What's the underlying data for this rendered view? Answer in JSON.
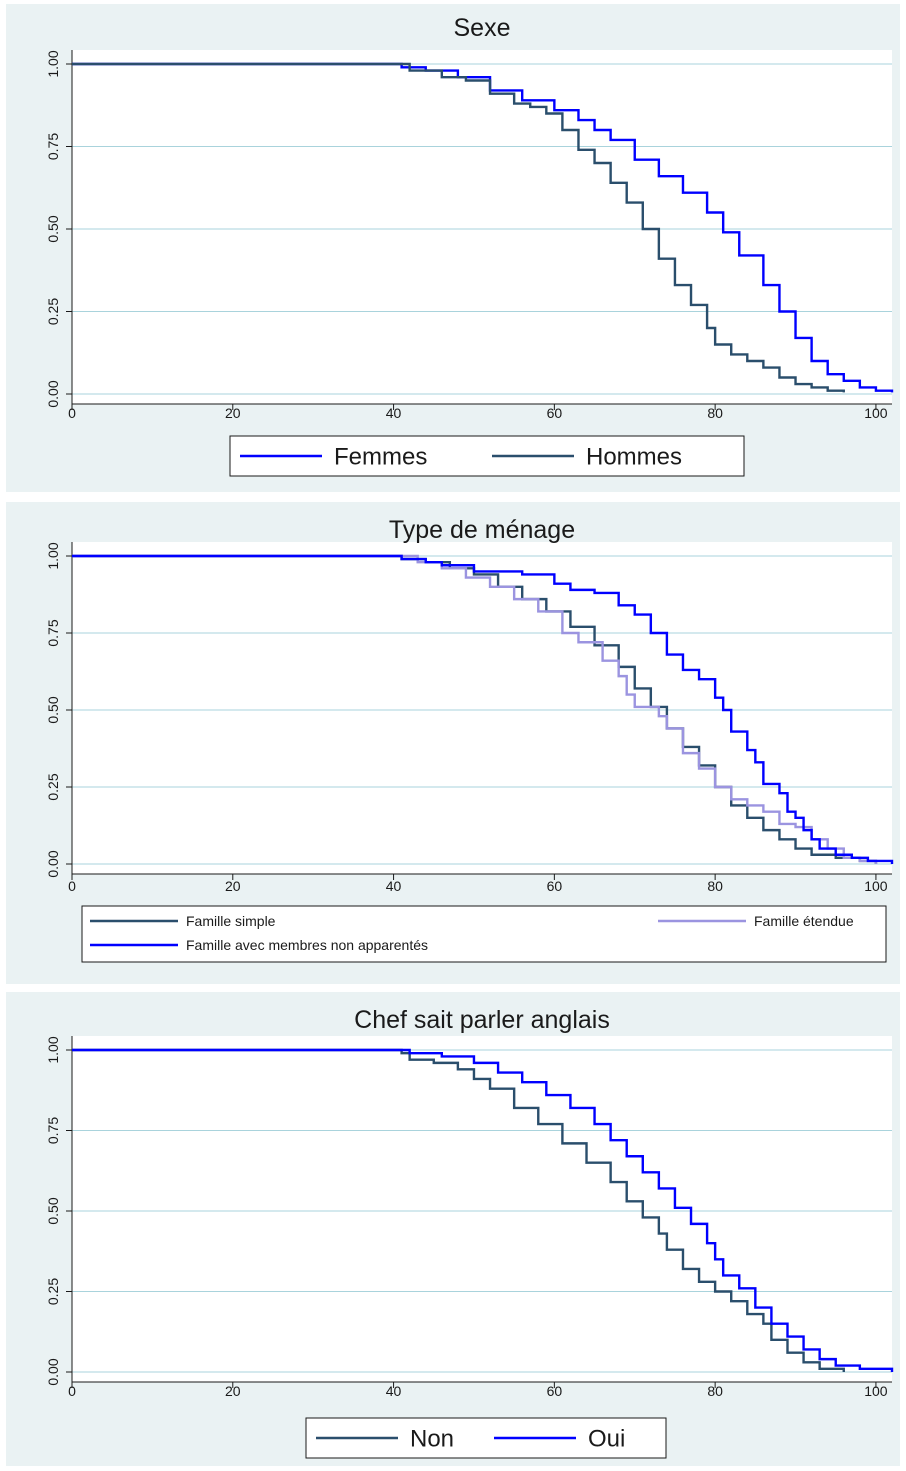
{
  "chart_data": [
    {
      "type": "line",
      "title": "Sexe",
      "xlabel": "",
      "ylabel": "",
      "xlim": [
        0,
        102
      ],
      "ylim": [
        0,
        1
      ],
      "xticks": [
        "0",
        "20",
        "40",
        "60",
        "80",
        "100"
      ],
      "yticks": [
        "0.00",
        "0.25",
        "0.50",
        "0.75",
        "1.00"
      ],
      "grid": true,
      "legend": "bottom",
      "series": [
        {
          "name": "Femmes",
          "color": "#0000ff",
          "points": [
            [
              0,
              1.0
            ],
            [
              40,
              1.0
            ],
            [
              41,
              0.99
            ],
            [
              44,
              0.98
            ],
            [
              48,
              0.96
            ],
            [
              52,
              0.92
            ],
            [
              56,
              0.89
            ],
            [
              60,
              0.86
            ],
            [
              63,
              0.83
            ],
            [
              65,
              0.8
            ],
            [
              67,
              0.77
            ],
            [
              70,
              0.71
            ],
            [
              73,
              0.66
            ],
            [
              76,
              0.61
            ],
            [
              79,
              0.55
            ],
            [
              81,
              0.49
            ],
            [
              83,
              0.42
            ],
            [
              86,
              0.33
            ],
            [
              88,
              0.25
            ],
            [
              90,
              0.17
            ],
            [
              92,
              0.1
            ],
            [
              94,
              0.06
            ],
            [
              96,
              0.04
            ],
            [
              98,
              0.02
            ],
            [
              100,
              0.01
            ],
            [
              102,
              0.005
            ]
          ]
        },
        {
          "name": "Hommes",
          "color": "#2a4e6c",
          "points": [
            [
              0,
              1.0
            ],
            [
              41,
              1.0
            ],
            [
              42,
              0.98
            ],
            [
              46,
              0.96
            ],
            [
              49,
              0.95
            ],
            [
              52,
              0.91
            ],
            [
              55,
              0.88
            ],
            [
              57,
              0.87
            ],
            [
              59,
              0.85
            ],
            [
              61,
              0.8
            ],
            [
              63,
              0.74
            ],
            [
              65,
              0.7
            ],
            [
              67,
              0.64
            ],
            [
              69,
              0.58
            ],
            [
              71,
              0.5
            ],
            [
              73,
              0.41
            ],
            [
              75,
              0.33
            ],
            [
              77,
              0.27
            ],
            [
              79,
              0.2
            ],
            [
              80,
              0.15
            ],
            [
              82,
              0.12
            ],
            [
              84,
              0.1
            ],
            [
              86,
              0.08
            ],
            [
              88,
              0.05
            ],
            [
              90,
              0.03
            ],
            [
              92,
              0.02
            ],
            [
              94,
              0.01
            ],
            [
              96,
              0.005
            ]
          ]
        }
      ]
    },
    {
      "type": "line",
      "title": "Type de ménage",
      "xlabel": "",
      "ylabel": "",
      "xlim": [
        0,
        102
      ],
      "ylim": [
        0,
        1
      ],
      "xticks": [
        "0",
        "20",
        "40",
        "60",
        "80",
        "100"
      ],
      "yticks": [
        "0.00",
        "0.25",
        "0.50",
        "0.75",
        "1.00"
      ],
      "grid": true,
      "legend": "bottom",
      "series": [
        {
          "name": "Famille simple",
          "color": "#2a4e6c",
          "points": [
            [
              0,
              1.0
            ],
            [
              40,
              1.0
            ],
            [
              41,
              0.99
            ],
            [
              44,
              0.98
            ],
            [
              47,
              0.96
            ],
            [
              50,
              0.94
            ],
            [
              53,
              0.9
            ],
            [
              56,
              0.86
            ],
            [
              59,
              0.82
            ],
            [
              62,
              0.77
            ],
            [
              65,
              0.71
            ],
            [
              68,
              0.64
            ],
            [
              70,
              0.57
            ],
            [
              72,
              0.51
            ],
            [
              74,
              0.44
            ],
            [
              76,
              0.38
            ],
            [
              78,
              0.32
            ],
            [
              80,
              0.25
            ],
            [
              82,
              0.19
            ],
            [
              84,
              0.15
            ],
            [
              86,
              0.11
            ],
            [
              88,
              0.08
            ],
            [
              90,
              0.05
            ],
            [
              92,
              0.03
            ],
            [
              95,
              0.02
            ],
            [
              98,
              0.01
            ],
            [
              100,
              0.0
            ]
          ]
        },
        {
          "name": "Famille étendue",
          "color": "#9b94e0",
          "points": [
            [
              0,
              1.0
            ],
            [
              42,
              1.0
            ],
            [
              43,
              0.98
            ],
            [
              46,
              0.96
            ],
            [
              49,
              0.93
            ],
            [
              52,
              0.9
            ],
            [
              55,
              0.86
            ],
            [
              58,
              0.82
            ],
            [
              61,
              0.75
            ],
            [
              63,
              0.72
            ],
            [
              65,
              0.72
            ],
            [
              66,
              0.66
            ],
            [
              68,
              0.61
            ],
            [
              69,
              0.55
            ],
            [
              70,
              0.51
            ],
            [
              72,
              0.51
            ],
            [
              73,
              0.48
            ],
            [
              74,
              0.44
            ],
            [
              76,
              0.36
            ],
            [
              78,
              0.31
            ],
            [
              80,
              0.25
            ],
            [
              82,
              0.21
            ],
            [
              84,
              0.19
            ],
            [
              86,
              0.17
            ],
            [
              88,
              0.13
            ],
            [
              90,
              0.12
            ],
            [
              92,
              0.08
            ],
            [
              94,
              0.05
            ],
            [
              96,
              0.02
            ],
            [
              98,
              0.01
            ],
            [
              100,
              0.0
            ]
          ]
        },
        {
          "name": "Famille avec membres non apparentés",
          "color": "#0000ff",
          "points": [
            [
              0,
              1.0
            ],
            [
              40,
              1.0
            ],
            [
              41,
              0.99
            ],
            [
              44,
              0.98
            ],
            [
              46,
              0.97
            ],
            [
              50,
              0.95
            ],
            [
              56,
              0.94
            ],
            [
              60,
              0.91
            ],
            [
              62,
              0.89
            ],
            [
              65,
              0.88
            ],
            [
              68,
              0.84
            ],
            [
              70,
              0.81
            ],
            [
              72,
              0.75
            ],
            [
              74,
              0.68
            ],
            [
              76,
              0.63
            ],
            [
              78,
              0.6
            ],
            [
              80,
              0.54
            ],
            [
              81,
              0.5
            ],
            [
              82,
              0.43
            ],
            [
              84,
              0.37
            ],
            [
              85,
              0.33
            ],
            [
              86,
              0.26
            ],
            [
              88,
              0.23
            ],
            [
              89,
              0.17
            ],
            [
              90,
              0.15
            ],
            [
              91,
              0.11
            ],
            [
              92,
              0.08
            ],
            [
              93,
              0.05
            ],
            [
              95,
              0.03
            ],
            [
              97,
              0.02
            ],
            [
              99,
              0.01
            ],
            [
              102,
              0.0
            ]
          ]
        }
      ]
    },
    {
      "type": "line",
      "title": "Chef sait parler anglais",
      "xlabel": "",
      "ylabel": "",
      "xlim": [
        0,
        102
      ],
      "ylim": [
        0,
        1
      ],
      "xticks": [
        "0",
        "20",
        "40",
        "60",
        "80",
        "100"
      ],
      "yticks": [
        "0.00",
        "0.25",
        "0.50",
        "0.75",
        "1.00"
      ],
      "grid": true,
      "legend": "bottom",
      "series": [
        {
          "name": "Non",
          "color": "#2a4e6c",
          "points": [
            [
              0,
              1.0
            ],
            [
              40,
              1.0
            ],
            [
              41,
              0.99
            ],
            [
              42,
              0.97
            ],
            [
              45,
              0.96
            ],
            [
              48,
              0.94
            ],
            [
              50,
              0.91
            ],
            [
              52,
              0.88
            ],
            [
              55,
              0.82
            ],
            [
              58,
              0.77
            ],
            [
              61,
              0.71
            ],
            [
              64,
              0.65
            ],
            [
              67,
              0.59
            ],
            [
              69,
              0.53
            ],
            [
              71,
              0.48
            ],
            [
              73,
              0.43
            ],
            [
              74,
              0.38
            ],
            [
              76,
              0.32
            ],
            [
              78,
              0.28
            ],
            [
              80,
              0.25
            ],
            [
              82,
              0.22
            ],
            [
              84,
              0.18
            ],
            [
              86,
              0.15
            ],
            [
              87,
              0.1
            ],
            [
              89,
              0.06
            ],
            [
              91,
              0.03
            ],
            [
              93,
              0.01
            ],
            [
              96,
              0.0
            ]
          ]
        },
        {
          "name": "Oui",
          "color": "#0000ff",
          "points": [
            [
              0,
              1.0
            ],
            [
              40,
              1.0
            ],
            [
              42,
              0.99
            ],
            [
              46,
              0.98
            ],
            [
              50,
              0.96
            ],
            [
              53,
              0.93
            ],
            [
              56,
              0.9
            ],
            [
              59,
              0.86
            ],
            [
              62,
              0.82
            ],
            [
              65,
              0.77
            ],
            [
              67,
              0.72
            ],
            [
              69,
              0.67
            ],
            [
              71,
              0.62
            ],
            [
              73,
              0.57
            ],
            [
              75,
              0.51
            ],
            [
              77,
              0.46
            ],
            [
              79,
              0.4
            ],
            [
              80,
              0.35
            ],
            [
              81,
              0.3
            ],
            [
              83,
              0.26
            ],
            [
              85,
              0.2
            ],
            [
              87,
              0.15
            ],
            [
              89,
              0.11
            ],
            [
              91,
              0.07
            ],
            [
              93,
              0.04
            ],
            [
              95,
              0.02
            ],
            [
              98,
              0.01
            ],
            [
              102,
              0.0
            ]
          ]
        }
      ]
    }
  ]
}
